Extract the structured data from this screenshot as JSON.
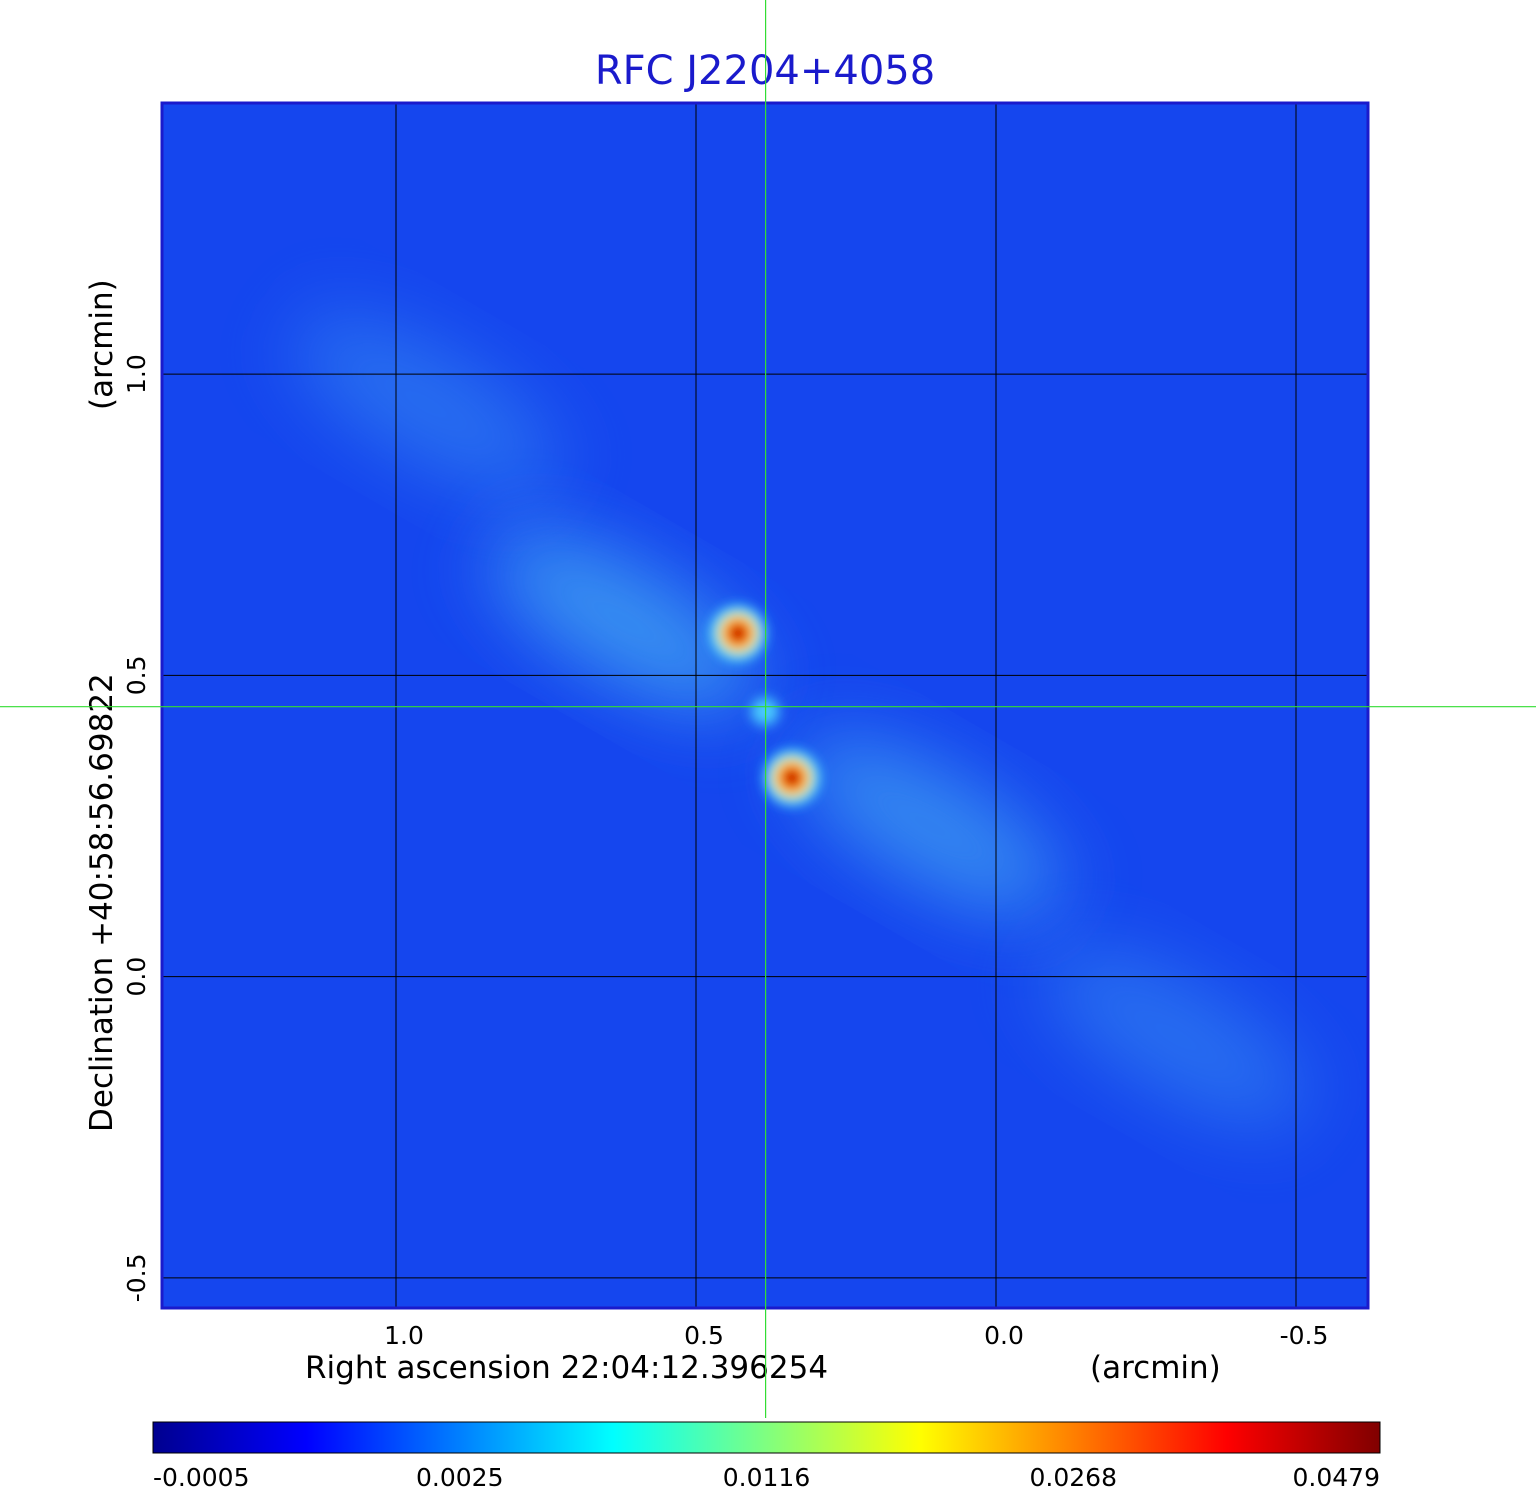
{
  "chart_data": {
    "type": "heatmap",
    "title": "RFC J2204+4058",
    "xlabel": "Right ascension  22:04:12.396254",
    "xunit": "(arcmin)",
    "ylabel": "Declination  +40:58:56.69822",
    "yunit": "(arcmin)",
    "xlim": [
      1.39,
      -0.62
    ],
    "ylim": [
      -0.55,
      1.45
    ],
    "x_ticks": [
      {
        "value": 1.0,
        "label": "1.0"
      },
      {
        "value": 0.5,
        "label": "0.5"
      },
      {
        "value": 0.0,
        "label": "0.0"
      },
      {
        "value": -0.5,
        "label": "-0.5"
      }
    ],
    "y_ticks": [
      {
        "value": 1.0,
        "label": "1.0"
      },
      {
        "value": 0.5,
        "label": "0.5"
      },
      {
        "value": 0.0,
        "label": "0.0"
      },
      {
        "value": -0.5,
        "label": "-0.5"
      }
    ],
    "grid": true,
    "crosshair": {
      "x": 0.384,
      "y": 0.448,
      "color": "#33dd33"
    },
    "colorbar": {
      "placement": "bottom",
      "colormap": "jet",
      "ticks": [
        "-0.0005",
        "0.0025",
        "0.0116",
        "0.0268",
        "0.0479"
      ]
    },
    "components": [
      {
        "x": 0.43,
        "y": 0.57,
        "peak": 0.0479
      },
      {
        "x": 0.34,
        "y": 0.33,
        "peak": 0.0479
      },
      {
        "x": 0.385,
        "y": 0.44,
        "peak": 0.008
      }
    ],
    "diffuse_emission": [
      {
        "x": 0.62,
        "y": 0.59,
        "level": 0.0035
      },
      {
        "x": 0.11,
        "y": 0.25,
        "level": 0.003
      },
      {
        "x": 0.95,
        "y": 0.95,
        "level": 0.0018
      },
      {
        "x": -0.3,
        "y": -0.1,
        "level": 0.0018
      }
    ]
  }
}
